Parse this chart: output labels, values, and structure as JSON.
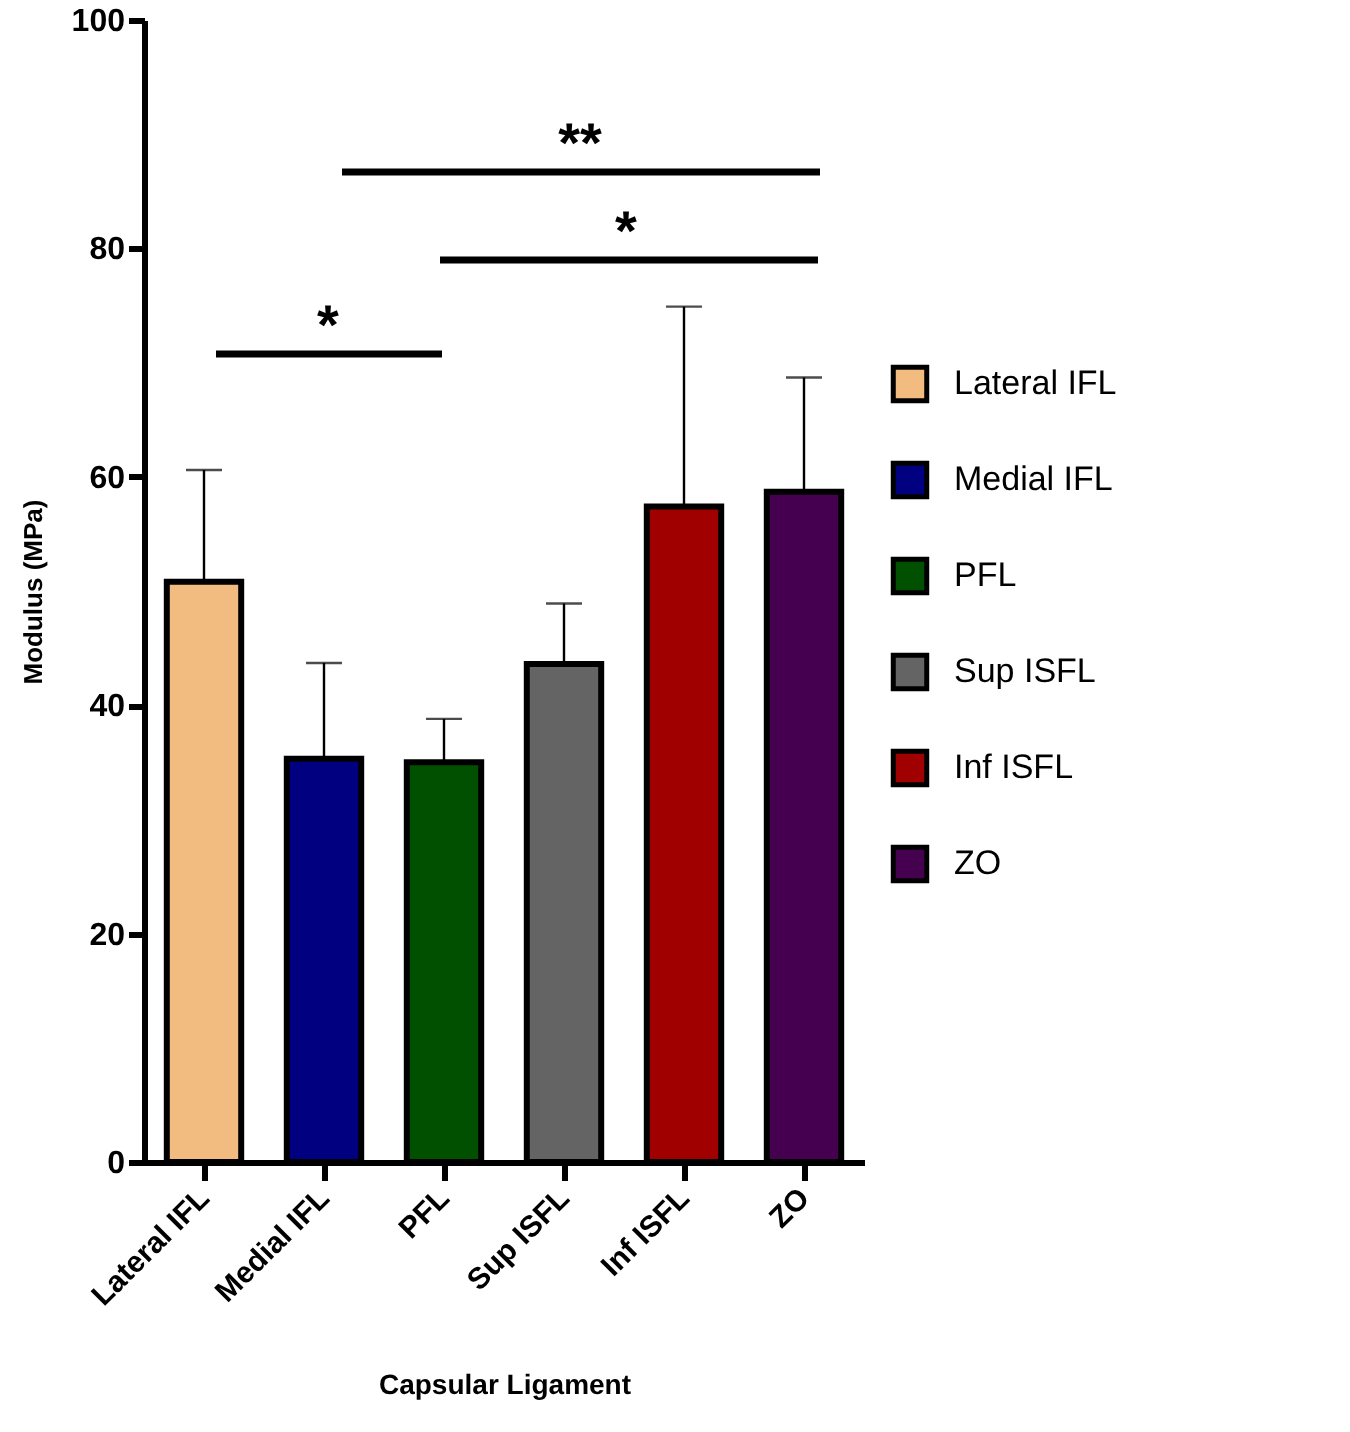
{
  "chart_data": {
    "type": "bar",
    "xlabel": "Capsular  Ligament",
    "ylabel": "Modulus  (MPa)",
    "categories": [
      "Lateral IFL",
      "Medial IFL",
      "PFL",
      "Sup ISFL",
      "Inf ISFL",
      "ZO"
    ],
    "series": [
      {
        "name": "Lateral IFL",
        "color": "#f2bb80",
        "values": [
          50.8,
          null,
          null,
          null,
          null,
          null
        ],
        "errors": [
          [
            50.8,
            60.6
          ],
          null,
          null,
          null,
          null,
          null
        ]
      },
      {
        "name": "Medial IFL",
        "color": "#000080",
        "values": [
          null,
          35.3,
          null,
          null,
          null,
          null
        ],
        "errors": [
          null,
          [
            35.3,
            43.7
          ],
          null,
          null,
          null,
          null
        ]
      },
      {
        "name": "PFL",
        "color": "#005000",
        "values": [
          null,
          null,
          35.0,
          null,
          null,
          null
        ],
        "errors": [
          null,
          null,
          [
            35.0,
            38.8
          ],
          null,
          null,
          null
        ]
      },
      {
        "name": "Sup ISFL",
        "color": "#646464",
        "values": [
          null,
          null,
          null,
          43.6,
          null,
          null
        ],
        "errors": [
          null,
          null,
          null,
          [
            43.6,
            48.9
          ],
          null,
          null
        ]
      },
      {
        "name": "Inf ISFL",
        "color": "#a00000",
        "values": [
          null,
          null,
          null,
          null,
          57.4,
          null
        ],
        "errors": [
          null,
          null,
          null,
          null,
          [
            57.4,
            74.9
          ],
          null
        ]
      },
      {
        "name": "ZO",
        "color": "#460050",
        "values": [
          null,
          null,
          null,
          null,
          null,
          58.7
        ],
        "errors": [
          null,
          null,
          null,
          null,
          null,
          [
            58.7,
            68.7
          ]
        ]
      }
    ],
    "ylim": [
      0,
      100
    ],
    "yticks": [
      0,
      20,
      40,
      60,
      80,
      100
    ],
    "legend": "right",
    "annotations": [
      "*",
      "*",
      "**"
    ]
  }
}
